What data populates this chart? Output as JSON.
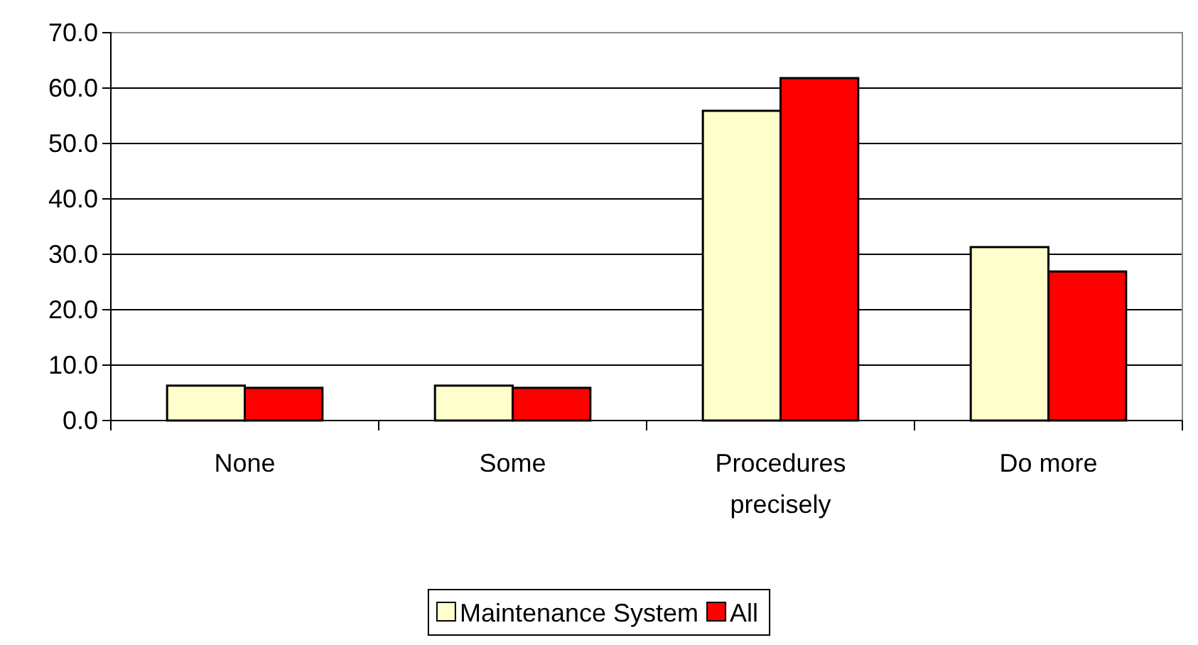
{
  "chart_data": {
    "type": "bar",
    "categories": [
      "None",
      "Some",
      "Procedures precisely",
      "Do more"
    ],
    "series": [
      {
        "name": "Maintenance System",
        "color": "#ffffcc",
        "values": [
          6.3,
          6.3,
          55.9,
          31.3
        ]
      },
      {
        "name": "All",
        "color": "#ff0000",
        "values": [
          5.9,
          5.9,
          61.8,
          26.9
        ]
      }
    ],
    "ylim": [
      0,
      70
    ],
    "yticks": [
      {
        "value": 0,
        "label": "0.0"
      },
      {
        "value": 10,
        "label": "10.0"
      },
      {
        "value": 20,
        "label": "20.0"
      },
      {
        "value": 30,
        "label": "30.0"
      },
      {
        "value": 40,
        "label": "40.0"
      },
      {
        "value": 50,
        "label": "50.0"
      },
      {
        "value": 60,
        "label": "60.0"
      },
      {
        "value": 70,
        "label": "70.0"
      }
    ],
    "grid": "y",
    "legend": "bottom"
  }
}
